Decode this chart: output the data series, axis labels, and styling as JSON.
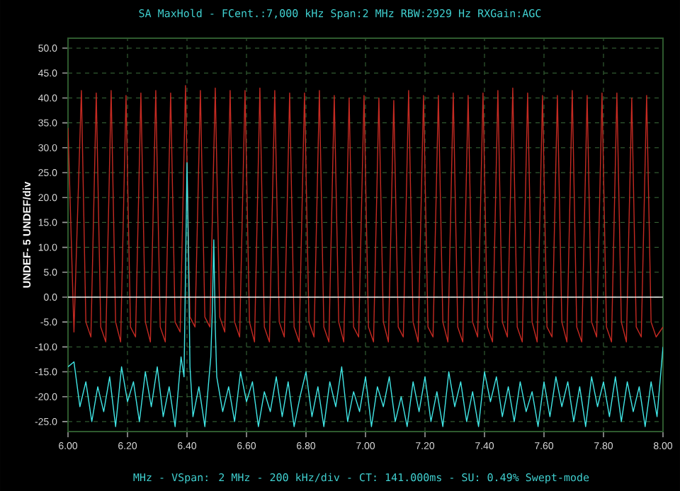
{
  "chart_data": {
    "type": "line",
    "title": "SA MaxHold - FCent.:7,000 kHz Span:2 MHz RBW:2929 Hz RXGain:AGC",
    "xlabel": "MHz - VSpan: 2 MHz - 200 kHz/div - CT: 141.000ms - SU: 0.49% Swept-mode",
    "ylabel": "UNDEF- 5 UNDEF/div",
    "xlim": [
      6.0,
      8.0
    ],
    "ylim": [
      -27,
      52
    ],
    "xticks": [
      {
        "value": 6.0,
        "label": "6.00"
      },
      {
        "value": 6.2,
        "label": "6.20"
      },
      {
        "value": 6.4,
        "label": "6.40"
      },
      {
        "value": 6.6,
        "label": "6.60"
      },
      {
        "value": 6.8,
        "label": "6.80"
      },
      {
        "value": 7.0,
        "label": "7.00"
      },
      {
        "value": 7.2,
        "label": "7.20"
      },
      {
        "value": 7.4,
        "label": "7.40"
      },
      {
        "value": 7.6,
        "label": "7.60"
      },
      {
        "value": 7.8,
        "label": "7.80"
      },
      {
        "value": 8.0,
        "label": "8.00"
      }
    ],
    "yticks": [
      {
        "value": -25,
        "label": "-25.0"
      },
      {
        "value": -20,
        "label": "-20.0"
      },
      {
        "value": -15,
        "label": "-15.0"
      },
      {
        "value": -10,
        "label": "-10.0"
      },
      {
        "value": -5,
        "label": "-5.0"
      },
      {
        "value": 0,
        "label": "0.0"
      },
      {
        "value": 5,
        "label": "5.0"
      },
      {
        "value": 10,
        "label": "10.0"
      },
      {
        "value": 15,
        "label": "15.0"
      },
      {
        "value": 20,
        "label": "20.0"
      },
      {
        "value": 25,
        "label": "25.0"
      },
      {
        "value": 30,
        "label": "30.0"
      },
      {
        "value": 35,
        "label": "35.0"
      },
      {
        "value": 40,
        "label": "40.0"
      },
      {
        "value": 45,
        "label": "45.0"
      },
      {
        "value": 50,
        "label": "50.0"
      }
    ],
    "grid": true,
    "marker": "none",
    "line_style": "solid",
    "ref_lines": [
      {
        "axis": "y",
        "value": 0,
        "color": "#f0f0f0"
      }
    ],
    "series": [
      {
        "color": "#c42a22",
        "x": [
          6.0,
          6.02,
          6.045,
          6.06,
          6.077,
          6.095,
          6.11,
          6.127,
          6.145,
          6.16,
          6.177,
          6.195,
          6.21,
          6.227,
          6.245,
          6.26,
          6.277,
          6.295,
          6.31,
          6.327,
          6.345,
          6.36,
          6.377,
          6.395,
          6.41,
          6.427,
          6.445,
          6.46,
          6.477,
          6.495,
          6.51,
          6.527,
          6.545,
          6.56,
          6.577,
          6.595,
          6.61,
          6.627,
          6.645,
          6.66,
          6.677,
          6.695,
          6.71,
          6.727,
          6.745,
          6.76,
          6.777,
          6.795,
          6.81,
          6.827,
          6.845,
          6.86,
          6.877,
          6.895,
          6.91,
          6.927,
          6.945,
          6.96,
          6.977,
          6.995,
          7.01,
          7.027,
          7.045,
          7.06,
          7.077,
          7.095,
          7.11,
          7.127,
          7.145,
          7.16,
          7.177,
          7.195,
          7.21,
          7.227,
          7.245,
          7.26,
          7.277,
          7.295,
          7.31,
          7.327,
          7.345,
          7.36,
          7.377,
          7.395,
          7.41,
          7.427,
          7.445,
          7.46,
          7.477,
          7.495,
          7.51,
          7.527,
          7.545,
          7.56,
          7.577,
          7.595,
          7.61,
          7.627,
          7.645,
          7.66,
          7.677,
          7.695,
          7.71,
          7.727,
          7.745,
          7.76,
          7.777,
          7.795,
          7.81,
          7.827,
          7.845,
          7.86,
          7.877,
          7.895,
          7.91,
          7.927,
          7.945,
          7.96,
          7.977,
          8.0
        ],
        "values": [
          34,
          -7,
          41.5,
          -5,
          -8,
          41,
          -6,
          -9,
          41.5,
          -5,
          -9,
          40.5,
          -6,
          -8,
          41,
          -5,
          -9,
          41.5,
          -6,
          -9,
          41,
          -5,
          -7,
          42.5,
          -4,
          -6,
          41.5,
          -4,
          -6,
          42,
          -4,
          -7,
          41.5,
          -5,
          -8,
          41.5,
          -5,
          -9,
          42,
          -6,
          -9,
          41.5,
          -5,
          -8,
          41,
          -6,
          -9,
          41,
          -5,
          -8,
          41.5,
          -6,
          -9,
          40.5,
          -5,
          -9,
          40,
          -6,
          -8,
          40.5,
          -6,
          -9,
          40,
          -5,
          -9,
          39.5,
          -6,
          -8,
          41.5,
          -5,
          -9,
          40.5,
          -6,
          -8,
          40.5,
          -5,
          -9,
          41,
          -6,
          -9,
          40.5,
          -5,
          -8,
          41,
          -6,
          -9,
          41.5,
          -5,
          -8,
          42,
          -6,
          -9,
          41,
          -5,
          -9,
          40.5,
          -6,
          -8,
          40.5,
          -5,
          -9,
          41.5,
          -6,
          -9,
          40.5,
          -5,
          -8,
          41,
          -6,
          -9,
          41,
          -5,
          -9,
          40,
          -6,
          -8,
          40.5,
          -5,
          -8,
          -6
        ]
      },
      {
        "color": "#40e6e6",
        "x": [
          6.0,
          6.02,
          6.04,
          6.06,
          6.08,
          6.1,
          6.12,
          6.14,
          6.16,
          6.18,
          6.2,
          6.22,
          6.24,
          6.26,
          6.28,
          6.3,
          6.32,
          6.34,
          6.36,
          6.38,
          6.39,
          6.395,
          6.4,
          6.405,
          6.41,
          6.42,
          6.44,
          6.46,
          6.48,
          6.485,
          6.49,
          6.495,
          6.5,
          6.52,
          6.54,
          6.56,
          6.58,
          6.6,
          6.62,
          6.64,
          6.66,
          6.68,
          6.7,
          6.72,
          6.74,
          6.76,
          6.78,
          6.8,
          6.82,
          6.84,
          6.86,
          6.88,
          6.9,
          6.92,
          6.94,
          6.96,
          6.98,
          7.0,
          7.02,
          7.04,
          7.06,
          7.08,
          7.1,
          7.12,
          7.14,
          7.16,
          7.18,
          7.2,
          7.22,
          7.24,
          7.26,
          7.28,
          7.3,
          7.32,
          7.34,
          7.36,
          7.38,
          7.4,
          7.42,
          7.44,
          7.46,
          7.48,
          7.5,
          7.52,
          7.54,
          7.56,
          7.58,
          7.6,
          7.62,
          7.64,
          7.66,
          7.68,
          7.7,
          7.72,
          7.74,
          7.76,
          7.78,
          7.8,
          7.82,
          7.84,
          7.86,
          7.88,
          7.9,
          7.92,
          7.94,
          7.96,
          7.98,
          8.0
        ],
        "values": [
          -14,
          -13,
          -22,
          -17,
          -25,
          -18,
          -23,
          -16,
          -26,
          -14,
          -21,
          -17,
          -25,
          -15,
          -22,
          -14,
          -24,
          -18,
          -26,
          -12,
          -16,
          5,
          27,
          8,
          -14,
          -24,
          -18,
          -26,
          -12,
          -3,
          11.5,
          -6,
          -16,
          -23,
          -18,
          -25,
          -15,
          -21,
          -17,
          -26,
          -19,
          -23,
          -16,
          -24,
          -17,
          -26,
          -20,
          -15,
          -24,
          -18,
          -26,
          -17,
          -22,
          -14,
          -25,
          -19,
          -23,
          -16,
          -26,
          -18,
          -22,
          -16,
          -25,
          -20,
          -26,
          -17,
          -23,
          -16,
          -25,
          -19,
          -26,
          -15,
          -22,
          -17,
          -25,
          -19,
          -26,
          -15,
          -21,
          -16,
          -24,
          -18,
          -25,
          -17,
          -23,
          -19,
          -26,
          -17,
          -24,
          -16,
          -22,
          -17,
          -25,
          -18,
          -26,
          -16,
          -22,
          -17,
          -24,
          -16,
          -25,
          -17,
          -23,
          -18,
          -26,
          -17,
          -24,
          -10
        ]
      }
    ]
  }
}
